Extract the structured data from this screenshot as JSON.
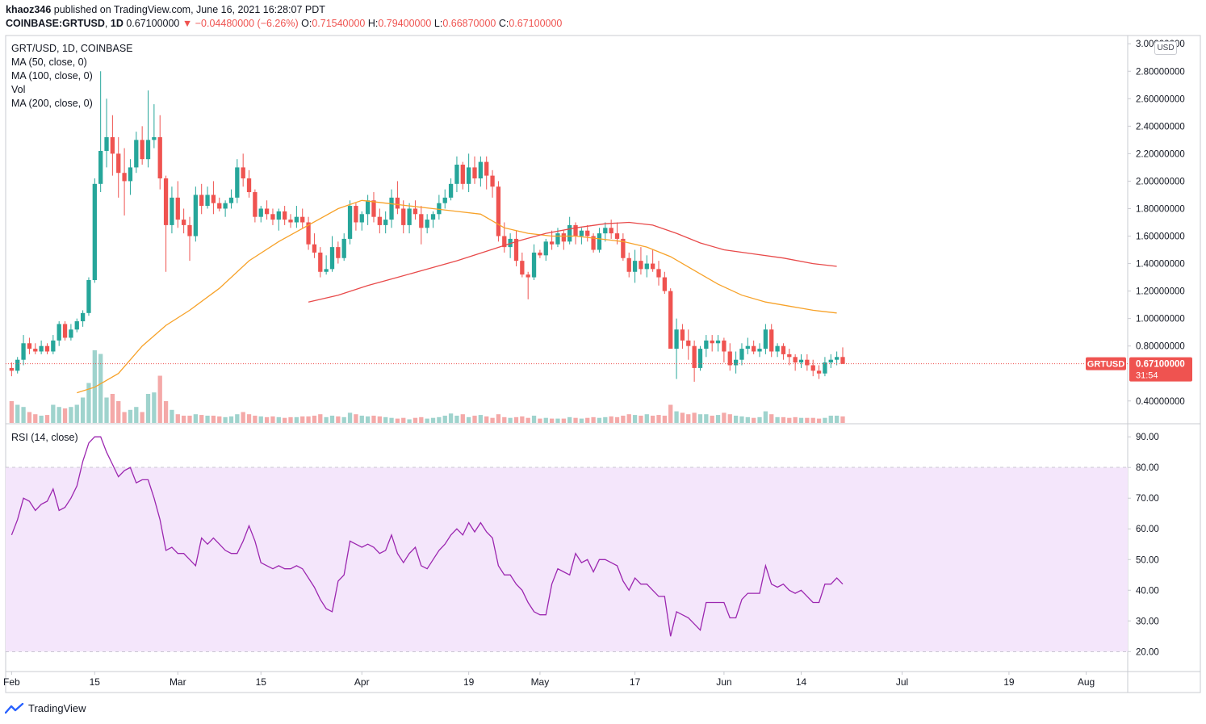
{
  "header": {
    "author": "khaoz346",
    "published_text": "published on TradingView.com, June 16, 2021 16:28:07 PDT",
    "symbol": "COINBASE:GRTUSD",
    "last": "0.67100000",
    "change": "−0.04480000 (−6.26%)",
    "o_label": "O:",
    "o": "0.71540000",
    "h_label": "H:",
    "h": "0.79400000",
    "l_label": "L:",
    "l": "0.66870000",
    "c_label": "C:",
    "c": "0.67100000"
  },
  "legend": {
    "title": "GRT/USD, 1D, COINBASE",
    "ma50": "MA (50, close, 0)",
    "ma100": "MA (100, close, 0)",
    "vol": "Vol",
    "ma200": "MA (200, close, 0)",
    "rsi": "RSI (14, close)"
  },
  "footer": {
    "brand": "TradingView"
  },
  "colors": {
    "up": "#26a69a",
    "down": "#ef5350",
    "vol_up": "#9fd3cd",
    "vol_down": "#f4a9a8",
    "ma50": "#f7a229",
    "ma100": "#e84a4a",
    "rsi": "#9c27b0",
    "rsi_band": "#f4e6fb",
    "price_tag": "#ef5350"
  },
  "chart_data": {
    "type": "candlestick",
    "price_axis": {
      "unit": "USD",
      "ticks": [
        "3.00000000",
        "2.80000000",
        "2.60000000",
        "2.40000000",
        "2.20000000",
        "2.00000000",
        "1.80000000",
        "1.60000000",
        "1.40000000",
        "1.20000000",
        "1.00000000",
        "0.80000000",
        "0.40000000"
      ],
      "range": [
        0.24,
        3.06
      ]
    },
    "last_price": {
      "label": "GRTUSD",
      "value": "0.67100000",
      "countdown": "31:54",
      "y": 0.671
    },
    "x_axis": {
      "labels": [
        {
          "text": "Feb",
          "day": 0
        },
        {
          "text": "15",
          "day": 14
        },
        {
          "text": "Mar",
          "day": 28
        },
        {
          "text": "15",
          "day": 42
        },
        {
          "text": "Apr",
          "day": 59
        },
        {
          "text": "19",
          "day": 77
        },
        {
          "text": "May",
          "day": 89
        },
        {
          "text": "17",
          "day": 105
        },
        {
          "text": "Jun",
          "day": 120
        },
        {
          "text": "14",
          "day": 133
        },
        {
          "text": "Jul",
          "day": 150
        },
        {
          "text": "19",
          "day": 168
        },
        {
          "text": "Aug",
          "day": 181
        }
      ],
      "range_days": [
        -1,
        188
      ]
    },
    "candles_ohlc": [
      [
        0.64,
        0.68,
        0.58,
        0.62
      ],
      [
        0.62,
        0.72,
        0.6,
        0.7
      ],
      [
        0.7,
        0.88,
        0.66,
        0.82
      ],
      [
        0.82,
        0.86,
        0.74,
        0.78
      ],
      [
        0.78,
        0.82,
        0.74,
        0.76
      ],
      [
        0.76,
        0.84,
        0.74,
        0.8
      ],
      [
        0.8,
        0.82,
        0.74,
        0.76
      ],
      [
        0.76,
        0.88,
        0.74,
        0.84
      ],
      [
        0.84,
        0.98,
        0.8,
        0.96
      ],
      [
        0.96,
        0.98,
        0.84,
        0.86
      ],
      [
        0.86,
        0.96,
        0.84,
        0.92
      ],
      [
        0.92,
        1.0,
        0.9,
        0.98
      ],
      [
        0.98,
        1.06,
        0.94,
        1.04
      ],
      [
        1.04,
        1.3,
        1.02,
        1.28
      ],
      [
        1.28,
        2.02,
        1.26,
        1.98
      ],
      [
        1.98,
        2.8,
        1.92,
        2.22
      ],
      [
        2.22,
        2.6,
        2.1,
        2.32
      ],
      [
        2.32,
        2.48,
        2.04,
        2.2
      ],
      [
        2.2,
        2.32,
        1.88,
        2.06
      ],
      [
        2.06,
        2.24,
        1.75,
        2.0
      ],
      [
        2.0,
        2.16,
        1.9,
        2.1
      ],
      [
        2.1,
        2.36,
        2.06,
        2.3
      ],
      [
        2.3,
        2.4,
        2.12,
        2.16
      ],
      [
        2.16,
        2.66,
        2.1,
        2.3
      ],
      [
        2.3,
        2.56,
        2.24,
        2.32
      ],
      [
        2.32,
        2.48,
        1.94,
        2.02
      ],
      [
        2.02,
        2.04,
        1.34,
        1.68
      ],
      [
        1.68,
        1.96,
        1.62,
        1.88
      ],
      [
        1.88,
        2.0,
        1.66,
        1.72
      ],
      [
        1.72,
        1.8,
        1.62,
        1.68
      ],
      [
        1.68,
        1.74,
        1.42,
        1.6
      ],
      [
        1.6,
        1.96,
        1.56,
        1.9
      ],
      [
        1.9,
        1.98,
        1.76,
        1.82
      ],
      [
        1.82,
        1.96,
        1.8,
        1.9
      ],
      [
        1.9,
        2.0,
        1.76,
        1.84
      ],
      [
        1.84,
        1.88,
        1.78,
        1.8
      ],
      [
        1.8,
        1.86,
        1.74,
        1.84
      ],
      [
        1.84,
        1.94,
        1.8,
        1.88
      ],
      [
        1.88,
        2.16,
        1.84,
        2.1
      ],
      [
        2.1,
        2.2,
        1.96,
        2.02
      ],
      [
        2.02,
        2.08,
        1.88,
        1.92
      ],
      [
        1.92,
        1.94,
        1.7,
        1.74
      ],
      [
        1.74,
        1.82,
        1.7,
        1.8
      ],
      [
        1.8,
        1.86,
        1.72,
        1.76
      ],
      [
        1.76,
        1.8,
        1.68,
        1.72
      ],
      [
        1.72,
        1.8,
        1.64,
        1.78
      ],
      [
        1.78,
        1.82,
        1.68,
        1.72
      ],
      [
        1.72,
        1.76,
        1.66,
        1.7
      ],
      [
        1.7,
        1.82,
        1.66,
        1.74
      ],
      [
        1.74,
        1.8,
        1.66,
        1.7
      ],
      [
        1.7,
        1.74,
        1.5,
        1.54
      ],
      [
        1.54,
        1.62,
        1.44,
        1.48
      ],
      [
        1.48,
        1.52,
        1.3,
        1.34
      ],
      [
        1.34,
        1.46,
        1.32,
        1.36
      ],
      [
        1.36,
        1.6,
        1.34,
        1.52
      ],
      [
        1.52,
        1.56,
        1.4,
        1.44
      ],
      [
        1.44,
        1.62,
        1.42,
        1.58
      ],
      [
        1.58,
        1.86,
        1.54,
        1.82
      ],
      [
        1.82,
        1.84,
        1.64,
        1.7
      ],
      [
        1.7,
        1.78,
        1.64,
        1.76
      ],
      [
        1.76,
        1.9,
        1.68,
        1.86
      ],
      [
        1.86,
        1.92,
        1.7,
        1.74
      ],
      [
        1.74,
        1.8,
        1.62,
        1.68
      ],
      [
        1.68,
        1.78,
        1.62,
        1.72
      ],
      [
        1.72,
        1.94,
        1.66,
        1.88
      ],
      [
        1.88,
        2.0,
        1.76,
        1.8
      ],
      [
        1.8,
        1.86,
        1.62,
        1.68
      ],
      [
        1.68,
        1.84,
        1.62,
        1.8
      ],
      [
        1.8,
        1.86,
        1.72,
        1.76
      ],
      [
        1.76,
        1.82,
        1.54,
        1.66
      ],
      [
        1.66,
        1.76,
        1.62,
        1.72
      ],
      [
        1.72,
        1.78,
        1.66,
        1.76
      ],
      [
        1.76,
        1.9,
        1.72,
        1.84
      ],
      [
        1.84,
        1.94,
        1.8,
        1.88
      ],
      [
        1.88,
        2.02,
        1.86,
        1.98
      ],
      [
        1.98,
        2.18,
        1.92,
        2.12
      ],
      [
        2.12,
        2.14,
        1.94,
        1.98
      ],
      [
        1.98,
        2.2,
        1.92,
        2.1
      ],
      [
        2.1,
        2.18,
        1.98,
        2.02
      ],
      [
        2.02,
        2.18,
        1.96,
        2.14
      ],
      [
        2.14,
        2.18,
        1.94,
        2.04
      ],
      [
        2.04,
        2.08,
        1.88,
        1.96
      ],
      [
        1.96,
        2.0,
        1.56,
        1.6
      ],
      [
        1.6,
        1.7,
        1.48,
        1.52
      ],
      [
        1.52,
        1.62,
        1.44,
        1.58
      ],
      [
        1.58,
        1.64,
        1.38,
        1.42
      ],
      [
        1.42,
        1.48,
        1.3,
        1.32
      ],
      [
        1.32,
        1.34,
        1.14,
        1.3
      ],
      [
        1.3,
        1.54,
        1.28,
        1.48
      ],
      [
        1.48,
        1.5,
        1.44,
        1.46
      ],
      [
        1.46,
        1.58,
        1.42,
        1.56
      ],
      [
        1.56,
        1.64,
        1.5,
        1.54
      ],
      [
        1.54,
        1.66,
        1.52,
        1.62
      ],
      [
        1.62,
        1.64,
        1.5,
        1.56
      ],
      [
        1.56,
        1.74,
        1.54,
        1.68
      ],
      [
        1.68,
        1.7,
        1.54,
        1.6
      ],
      [
        1.6,
        1.66,
        1.54,
        1.64
      ],
      [
        1.64,
        1.68,
        1.56,
        1.6
      ],
      [
        1.6,
        1.62,
        1.48,
        1.5
      ],
      [
        1.5,
        1.66,
        1.48,
        1.62
      ],
      [
        1.62,
        1.7,
        1.56,
        1.66
      ],
      [
        1.66,
        1.72,
        1.58,
        1.62
      ],
      [
        1.62,
        1.7,
        1.54,
        1.58
      ],
      [
        1.58,
        1.62,
        1.42,
        1.44
      ],
      [
        1.44,
        1.48,
        1.3,
        1.34
      ],
      [
        1.34,
        1.5,
        1.26,
        1.42
      ],
      [
        1.42,
        1.52,
        1.32,
        1.36
      ],
      [
        1.36,
        1.46,
        1.3,
        1.4
      ],
      [
        1.4,
        1.5,
        1.34,
        1.36
      ],
      [
        1.36,
        1.42,
        1.24,
        1.3
      ],
      [
        1.3,
        1.34,
        1.18,
        1.2
      ],
      [
        1.2,
        1.22,
        0.82,
        0.78
      ],
      [
        0.78,
        1.0,
        0.56,
        0.92
      ],
      [
        0.92,
        0.96,
        0.78,
        0.84
      ],
      [
        0.84,
        0.92,
        0.7,
        0.8
      ],
      [
        0.8,
        0.84,
        0.54,
        0.64
      ],
      [
        0.64,
        0.8,
        0.62,
        0.78
      ],
      [
        0.78,
        0.88,
        0.72,
        0.84
      ],
      [
        0.84,
        0.88,
        0.76,
        0.82
      ],
      [
        0.82,
        0.88,
        0.76,
        0.84
      ],
      [
        0.84,
        0.86,
        0.68,
        0.76
      ],
      [
        0.76,
        0.82,
        0.62,
        0.66
      ],
      [
        0.66,
        0.76,
        0.6,
        0.7
      ],
      [
        0.7,
        0.82,
        0.66,
        0.78
      ],
      [
        0.78,
        0.86,
        0.74,
        0.8
      ],
      [
        0.8,
        0.84,
        0.74,
        0.76
      ],
      [
        0.76,
        0.82,
        0.72,
        0.78
      ],
      [
        0.78,
        0.96,
        0.74,
        0.92
      ],
      [
        0.92,
        0.96,
        0.72,
        0.76
      ],
      [
        0.76,
        0.82,
        0.72,
        0.8
      ],
      [
        0.8,
        0.82,
        0.7,
        0.74
      ],
      [
        0.74,
        0.78,
        0.66,
        0.72
      ],
      [
        0.72,
        0.74,
        0.62,
        0.68
      ],
      [
        0.68,
        0.74,
        0.64,
        0.7
      ],
      [
        0.7,
        0.74,
        0.62,
        0.66
      ],
      [
        0.66,
        0.7,
        0.58,
        0.62
      ],
      [
        0.62,
        0.66,
        0.56,
        0.6
      ],
      [
        0.6,
        0.72,
        0.58,
        0.68
      ],
      [
        0.68,
        0.74,
        0.64,
        0.7
      ],
      [
        0.7,
        0.76,
        0.66,
        0.72
      ],
      [
        0.72,
        0.79,
        0.67,
        0.67
      ]
    ],
    "volume_note": "relative bar heights",
    "volume": [
      0.3,
      0.25,
      0.22,
      0.15,
      0.12,
      0.1,
      0.11,
      0.25,
      0.22,
      0.2,
      0.22,
      0.25,
      0.35,
      0.55,
      1.0,
      0.95,
      0.35,
      0.4,
      0.3,
      0.15,
      0.18,
      0.22,
      0.15,
      0.4,
      0.42,
      0.65,
      0.3,
      0.18,
      0.12,
      0.1,
      0.1,
      0.12,
      0.11,
      0.1,
      0.1,
      0.09,
      0.08,
      0.09,
      0.12,
      0.15,
      0.12,
      0.1,
      0.09,
      0.08,
      0.09,
      0.08,
      0.07,
      0.08,
      0.08,
      0.09,
      0.09,
      0.1,
      0.12,
      0.08,
      0.1,
      0.09,
      0.08,
      0.14,
      0.12,
      0.1,
      0.09,
      0.1,
      0.09,
      0.08,
      0.07,
      0.06,
      0.07,
      0.05,
      0.07,
      0.08,
      0.06,
      0.07,
      0.08,
      0.1,
      0.13,
      0.1,
      0.12,
      0.08,
      0.1,
      0.11,
      0.09,
      0.07,
      0.12,
      0.08,
      0.07,
      0.08,
      0.09,
      0.07,
      0.1,
      0.06,
      0.07,
      0.06,
      0.06,
      0.06,
      0.08,
      0.07,
      0.06,
      0.07,
      0.08,
      0.07,
      0.08,
      0.09,
      0.08,
      0.1,
      0.12,
      0.11,
      0.1,
      0.12,
      0.1,
      0.11,
      0.1,
      0.25,
      0.16,
      0.14,
      0.12,
      0.14,
      0.12,
      0.12,
      0.1,
      0.11,
      0.14,
      0.12,
      0.1,
      0.09,
      0.08,
      0.07,
      0.08,
      0.16,
      0.12,
      0.08,
      0.08,
      0.07,
      0.08,
      0.07,
      0.07,
      0.07,
      0.06,
      0.07,
      0.1,
      0.1,
      0.09
    ],
    "ma50": [
      [
        11,
        0.46
      ],
      [
        14,
        0.5
      ],
      [
        18,
        0.6
      ],
      [
        22,
        0.8
      ],
      [
        26,
        0.95
      ],
      [
        30,
        1.06
      ],
      [
        35,
        1.22
      ],
      [
        40,
        1.42
      ],
      [
        45,
        1.56
      ],
      [
        50,
        1.68
      ],
      [
        55,
        1.8
      ],
      [
        59,
        1.86
      ],
      [
        63,
        1.84
      ],
      [
        67,
        1.82
      ],
      [
        71,
        1.8
      ],
      [
        75,
        1.78
      ],
      [
        79,
        1.76
      ],
      [
        83,
        1.66
      ],
      [
        87,
        1.62
      ],
      [
        91,
        1.6
      ],
      [
        95,
        1.6
      ],
      [
        99,
        1.58
      ],
      [
        103,
        1.56
      ],
      [
        107,
        1.52
      ],
      [
        111,
        1.45
      ],
      [
        115,
        1.35
      ],
      [
        119,
        1.25
      ],
      [
        123,
        1.17
      ],
      [
        127,
        1.12
      ],
      [
        131,
        1.09
      ],
      [
        135,
        1.06
      ],
      [
        139,
        1.04
      ]
    ],
    "ma100": [
      [
        50,
        1.12
      ],
      [
        55,
        1.17
      ],
      [
        60,
        1.24
      ],
      [
        65,
        1.3
      ],
      [
        70,
        1.36
      ],
      [
        75,
        1.42
      ],
      [
        80,
        1.49
      ],
      [
        85,
        1.56
      ],
      [
        90,
        1.62
      ],
      [
        95,
        1.66
      ],
      [
        100,
        1.69
      ],
      [
        104,
        1.7
      ],
      [
        108,
        1.68
      ],
      [
        112,
        1.62
      ],
      [
        116,
        1.55
      ],
      [
        120,
        1.5
      ],
      [
        125,
        1.47
      ],
      [
        130,
        1.44
      ],
      [
        135,
        1.4
      ],
      [
        139,
        1.38
      ]
    ],
    "rsi": {
      "ticks": [
        "90.00",
        "80.00",
        "70.00",
        "60.00",
        "50.00",
        "40.00",
        "30.00",
        "20.00"
      ],
      "band": [
        20,
        80
      ],
      "range": [
        13.5,
        94.0
      ],
      "values": [
        58,
        63,
        70,
        69,
        66,
        68,
        69,
        73,
        66,
        67,
        70,
        74,
        82,
        88,
        90,
        90,
        85,
        81,
        77,
        79,
        80,
        75,
        76,
        76,
        70,
        63,
        53,
        54,
        52,
        52,
        50,
        48,
        57,
        55,
        57,
        55,
        53,
        52,
        52,
        56,
        61,
        56,
        49,
        48,
        47,
        48,
        47,
        47,
        48,
        47,
        44,
        41,
        37,
        34,
        33,
        43,
        45,
        56,
        55,
        54,
        55,
        54,
        52,
        53,
        58,
        52,
        49,
        52,
        54,
        48,
        47,
        50,
        53,
        55,
        58,
        60,
        58,
        62,
        59,
        62,
        59,
        57,
        48,
        45,
        45,
        42,
        40,
        36,
        33,
        32,
        32,
        42,
        47,
        46,
        45,
        52,
        49,
        50,
        46,
        50,
        50,
        49,
        48,
        43,
        40,
        44,
        42,
        42,
        40,
        38,
        38,
        25,
        33,
        32,
        31,
        29,
        27,
        36,
        36,
        36,
        36,
        31,
        31,
        37,
        39,
        39,
        39,
        48,
        42,
        41,
        42,
        40,
        39,
        40,
        38,
        36,
        36,
        42,
        42,
        44,
        42
      ]
    }
  }
}
